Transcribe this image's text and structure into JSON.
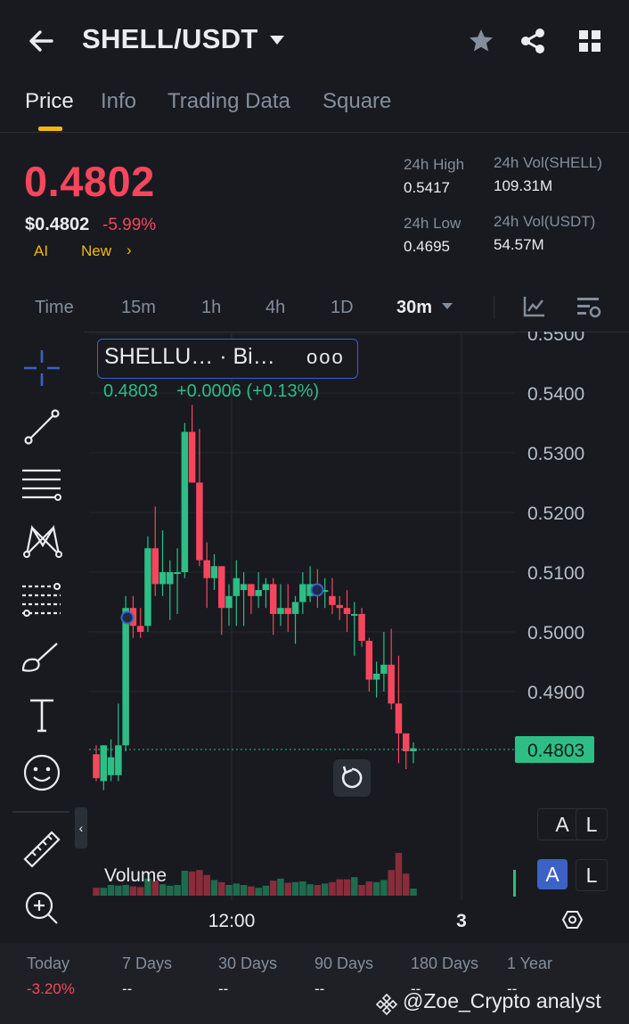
{
  "header": {
    "pair": "SHELL/USDT",
    "icons": [
      "back-arrow-icon",
      "star-icon",
      "share-icon",
      "grid-icon"
    ]
  },
  "tabs": [
    {
      "label": "Price",
      "active": true
    },
    {
      "label": "Info",
      "active": false
    },
    {
      "label": "Trading Data",
      "active": false
    },
    {
      "label": "Square",
      "active": false
    }
  ],
  "price": {
    "last": "0.4802",
    "usd": "$0.4802",
    "change": "-5.99%",
    "ai_label": "AI",
    "new_label": "New",
    "new_arrow": "›"
  },
  "stats": {
    "high_label": "24h High",
    "high": "0.5417",
    "low_label": "24h Low",
    "low": "0.4695",
    "vol_base_label": "24h Vol(SHELL)",
    "vol_base": "109.31M",
    "vol_quote_label": "24h Vol(USDT)",
    "vol_quote": "54.57M"
  },
  "intervals": [
    {
      "label": "Time",
      "active": false
    },
    {
      "label": "15m",
      "active": false
    },
    {
      "label": "1h",
      "active": false
    },
    {
      "label": "4h",
      "active": false
    },
    {
      "label": "1D",
      "active": false
    },
    {
      "label": "30m",
      "active": true
    }
  ],
  "legend": {
    "title": "SHELLU…  · Bi…",
    "dots": "ooo",
    "price": "0.4803",
    "change": "+0.0006 (+0.13%)"
  },
  "chart_data": {
    "type": "candlestick",
    "ylim": [
      0.48,
      0.55
    ],
    "y_ticks": [
      "0.5500",
      "0.5400",
      "0.5300",
      "0.5200",
      "0.5100",
      "0.5000",
      "0.4900"
    ],
    "last_price_label": "0.4803",
    "x_ticks": [
      "12:00",
      "3"
    ],
    "volume_label": "Volume",
    "candles": [
      {
        "o": 0.4795,
        "h": 0.481,
        "l": 0.475,
        "c": 0.4755
      },
      {
        "o": 0.475,
        "h": 0.481,
        "l": 0.4735,
        "c": 0.481
      },
      {
        "o": 0.476,
        "h": 0.482,
        "l": 0.475,
        "c": 0.479
      },
      {
        "o": 0.476,
        "h": 0.488,
        "l": 0.475,
        "c": 0.481
      },
      {
        "o": 0.481,
        "h": 0.506,
        "l": 0.48,
        "c": 0.504
      },
      {
        "o": 0.504,
        "h": 0.506,
        "l": 0.499,
        "c": 0.501
      },
      {
        "o": 0.501,
        "h": 0.504,
        "l": 0.499,
        "c": 0.5
      },
      {
        "o": 0.501,
        "h": 0.516,
        "l": 0.5,
        "c": 0.514
      },
      {
        "o": 0.514,
        "h": 0.521,
        "l": 0.506,
        "c": 0.508
      },
      {
        "o": 0.508,
        "h": 0.517,
        "l": 0.506,
        "c": 0.51
      },
      {
        "o": 0.508,
        "h": 0.512,
        "l": 0.502,
        "c": 0.51
      },
      {
        "o": 0.51,
        "h": 0.514,
        "l": 0.503,
        "c": 0.51
      },
      {
        "o": 0.51,
        "h": 0.535,
        "l": 0.509,
        "c": 0.5335
      },
      {
        "o": 0.5335,
        "h": 0.538,
        "l": 0.525,
        "c": 0.525
      },
      {
        "o": 0.525,
        "h": 0.534,
        "l": 0.511,
        "c": 0.512
      },
      {
        "o": 0.512,
        "h": 0.515,
        "l": 0.504,
        "c": 0.509
      },
      {
        "o": 0.509,
        "h": 0.513,
        "l": 0.507,
        "c": 0.511
      },
      {
        "o": 0.511,
        "h": 0.511,
        "l": 0.4995,
        "c": 0.504
      },
      {
        "o": 0.504,
        "h": 0.508,
        "l": 0.501,
        "c": 0.506
      },
      {
        "o": 0.506,
        "h": 0.512,
        "l": 0.501,
        "c": 0.509
      },
      {
        "o": 0.507,
        "h": 0.51,
        "l": 0.501,
        "c": 0.508
      },
      {
        "o": 0.508,
        "h": 0.508,
        "l": 0.503,
        "c": 0.506
      },
      {
        "o": 0.506,
        "h": 0.51,
        "l": 0.504,
        "c": 0.507
      },
      {
        "o": 0.507,
        "h": 0.509,
        "l": 0.504,
        "c": 0.508
      },
      {
        "o": 0.508,
        "h": 0.509,
        "l": 0.4995,
        "c": 0.503
      },
      {
        "o": 0.503,
        "h": 0.508,
        "l": 0.501,
        "c": 0.504
      },
      {
        "o": 0.504,
        "h": 0.508,
        "l": 0.5,
        "c": 0.503
      },
      {
        "o": 0.503,
        "h": 0.506,
        "l": 0.498,
        "c": 0.505
      },
      {
        "o": 0.505,
        "h": 0.51,
        "l": 0.503,
        "c": 0.508
      },
      {
        "o": 0.506,
        "h": 0.511,
        "l": 0.505,
        "c": 0.508
      },
      {
        "o": 0.508,
        "h": 0.5105,
        "l": 0.504,
        "c": 0.507
      },
      {
        "o": 0.507,
        "h": 0.509,
        "l": 0.504,
        "c": 0.507
      },
      {
        "o": 0.506,
        "h": 0.509,
        "l": 0.503,
        "c": 0.5045
      },
      {
        "o": 0.5045,
        "h": 0.506,
        "l": 0.502,
        "c": 0.504
      },
      {
        "o": 0.504,
        "h": 0.507,
        "l": 0.5,
        "c": 0.503
      },
      {
        "o": 0.503,
        "h": 0.505,
        "l": 0.496,
        "c": 0.503
      },
      {
        "o": 0.503,
        "h": 0.504,
        "l": 0.4975,
        "c": 0.4985
      },
      {
        "o": 0.4985,
        "h": 0.499,
        "l": 0.49,
        "c": 0.492
      },
      {
        "o": 0.492,
        "h": 0.495,
        "l": 0.489,
        "c": 0.493
      },
      {
        "o": 0.493,
        "h": 0.5,
        "l": 0.49,
        "c": 0.4945
      },
      {
        "o": 0.4945,
        "h": 0.5005,
        "l": 0.487,
        "c": 0.488
      },
      {
        "o": 0.488,
        "h": 0.496,
        "l": 0.478,
        "c": 0.483
      },
      {
        "o": 0.483,
        "h": 0.483,
        "l": 0.477,
        "c": 0.48
      },
      {
        "o": 0.48,
        "h": 0.4815,
        "l": 0.478,
        "c": 0.4805
      }
    ],
    "volumes": [
      22,
      22,
      30,
      28,
      30,
      26,
      24,
      48,
      42,
      32,
      28,
      30,
      70,
      68,
      72,
      58,
      44,
      38,
      30,
      34,
      30,
      26,
      22,
      28,
      42,
      48,
      36,
      38,
      40,
      32,
      30,
      34,
      38,
      46,
      46,
      52,
      30,
      40,
      38,
      44,
      72,
      120,
      62,
      20
    ]
  },
  "scale_buttons": [
    {
      "label": "A",
      "active": false
    },
    {
      "label": "L",
      "active": false
    },
    {
      "label": "A",
      "active": true
    },
    {
      "label": "L",
      "active": false
    }
  ],
  "tools": [
    "crosshair-icon",
    "trendline-icon",
    "parallel-lines-icon",
    "pattern-icon",
    "fib-icon",
    "brush-icon",
    "text-tool-icon",
    "emoji-icon",
    "ruler-icon",
    "zoom-in-icon"
  ],
  "performance": [
    {
      "label": "Today",
      "value": "-3.20%"
    },
    {
      "label": "7 Days",
      "value": "--"
    },
    {
      "label": "30 Days",
      "value": "--"
    },
    {
      "label": "90 Days",
      "value": "--"
    },
    {
      "label": "180 Days",
      "value": "--"
    },
    {
      "label": "1 Year",
      "value": "--"
    }
  ],
  "watermark": "@Zoe_Crypto analyst",
  "colors": {
    "up": "#2ebd85",
    "down": "#f6465d",
    "accent": "#f0b90b",
    "bg": "#181a20"
  }
}
